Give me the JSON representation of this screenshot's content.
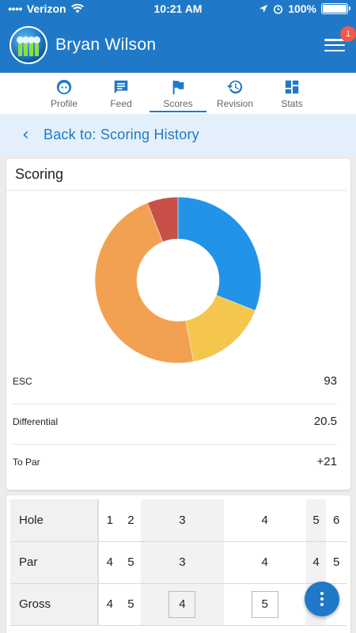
{
  "status_bar": {
    "carrier": "Verizon",
    "time": "10:21 AM",
    "battery": "100%"
  },
  "header": {
    "user_name": "Bryan Wilson",
    "notification_count": "1"
  },
  "tabs": [
    {
      "label": "Profile",
      "icon": "face-icon",
      "active": false
    },
    {
      "label": "Feed",
      "icon": "feed-icon",
      "active": false
    },
    {
      "label": "Scores",
      "icon": "flag-icon",
      "active": true
    },
    {
      "label": "Revision",
      "icon": "history-icon",
      "active": false
    },
    {
      "label": "Stats",
      "icon": "dashboard-icon",
      "active": false
    }
  ],
  "back_link": {
    "label": "Back to: Scoring History"
  },
  "scoring": {
    "title": "Scoring",
    "rows": [
      {
        "label": "ESC",
        "value": "93"
      },
      {
        "label": "Differential",
        "value": "20.5"
      },
      {
        "label": "To Par",
        "value": "+21"
      }
    ]
  },
  "chart_data": {
    "type": "pie",
    "title": "",
    "slices": [
      {
        "value": 31,
        "color": "#2393e8"
      },
      {
        "value": 16,
        "color": "#f4c64e"
      },
      {
        "value": 47,
        "color": "#f2a152"
      },
      {
        "value": 6,
        "color": "#c95048"
      }
    ]
  },
  "scorecard": {
    "rows": [
      {
        "label": "Hole",
        "values": [
          "1",
          "2",
          "3",
          "4",
          "5",
          "6"
        ]
      },
      {
        "label": "Par",
        "values": [
          "4",
          "5",
          "3",
          "4",
          "4",
          "5"
        ]
      },
      {
        "label": "Gross",
        "values": [
          "4",
          "5",
          "4",
          "5",
          "4",
          ""
        ]
      }
    ]
  },
  "colors": {
    "brand": "#1f79c8",
    "back_bar": "#e3f0fb",
    "badge": "#f05a4a"
  }
}
